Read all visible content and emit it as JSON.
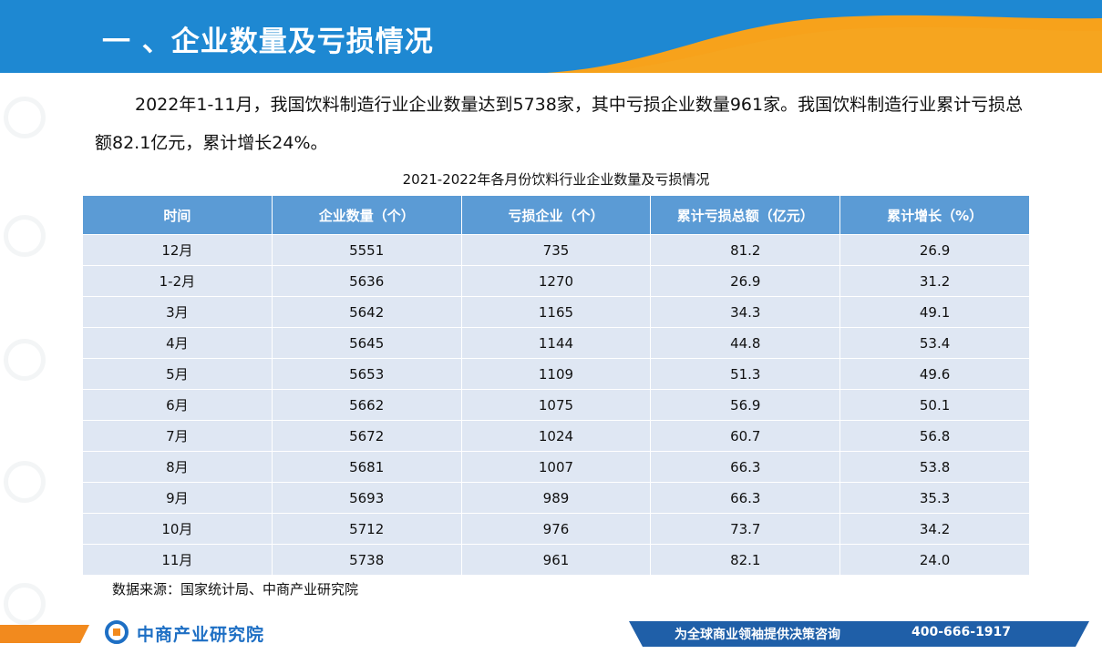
{
  "header": {
    "title": "一 、企业数量及亏损情况"
  },
  "intro": {
    "text": "2022年1-11月，我国饮料制造行业企业数量达到5738家，其中亏损企业数量961家。我国饮料制造行业累计亏损总额82.1亿元，累计增长24%。"
  },
  "table": {
    "title": "2021-2022年各月份饮料行业企业数量及亏损情况",
    "headers": [
      "时间",
      "企业数量（个）",
      "亏损企业（个）",
      "累计亏损总额（亿元）",
      "累计增长（%）"
    ],
    "rows": [
      [
        "12月",
        "5551",
        "735",
        "81.2",
        "26.9"
      ],
      [
        "1-2月",
        "5636",
        "1270",
        "26.9",
        "31.2"
      ],
      [
        "3月",
        "5642",
        "1165",
        "34.3",
        "49.1"
      ],
      [
        "4月",
        "5645",
        "1144",
        "44.8",
        "53.4"
      ],
      [
        "5月",
        "5653",
        "1109",
        "51.3",
        "49.6"
      ],
      [
        "6月",
        "5662",
        "1075",
        "56.9",
        "50.1"
      ],
      [
        "7月",
        "5672",
        "1024",
        "60.7",
        "56.8"
      ],
      [
        "8月",
        "5681",
        "1007",
        "66.3",
        "53.8"
      ],
      [
        "9月",
        "5693",
        "989",
        "66.3",
        "35.3"
      ],
      [
        "10月",
        "5712",
        "976",
        "73.7",
        "34.2"
      ],
      [
        "11月",
        "5738",
        "961",
        "82.1",
        "24.0"
      ]
    ],
    "source": "数据来源：国家统计局、中商产业研究院"
  },
  "footer": {
    "logo": "中商产业研究院",
    "slogan": "为全球商业领袖提供决策咨询",
    "phone": "400-666-1917"
  },
  "colors": {
    "header_blue": "#1e88d2",
    "accent_orange": "#f7a21b",
    "table_header": "#5b9bd5",
    "table_row": "#dfe7f3",
    "footer_blue": "#1f5fa8"
  }
}
